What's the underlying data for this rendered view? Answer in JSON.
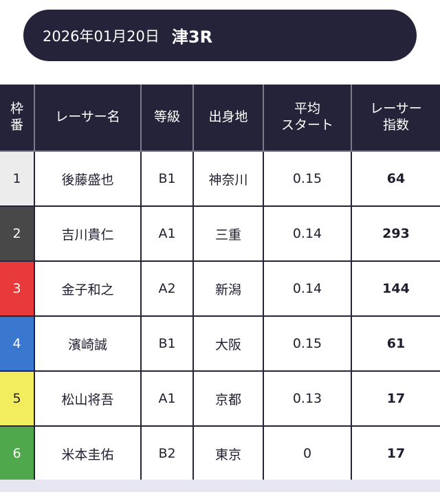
{
  "header": {
    "date": "2026年01月20日",
    "race": "津3R"
  },
  "table": {
    "columns": {
      "frame": [
        "枠",
        "番"
      ],
      "racer_name": "レーサー名",
      "grade": "等級",
      "hometown": "出身地",
      "avg_start": [
        "平均",
        "スタート"
      ],
      "racer_index": [
        "レーサー",
        "指数"
      ]
    },
    "rows": [
      {
        "frame": "1",
        "name": "後藤盛也",
        "grade": "B1",
        "hometown": "神奈川",
        "avg_start": "0.15",
        "index": "64"
      },
      {
        "frame": "2",
        "name": "吉川貴仁",
        "grade": "A1",
        "hometown": "三重",
        "avg_start": "0.14",
        "index": "293"
      },
      {
        "frame": "3",
        "name": "金子和之",
        "grade": "A2",
        "hometown": "新潟",
        "avg_start": "0.14",
        "index": "144"
      },
      {
        "frame": "4",
        "name": "濱崎誠",
        "grade": "B1",
        "hometown": "大阪",
        "avg_start": "0.15",
        "index": "61"
      },
      {
        "frame": "5",
        "name": "松山将吾",
        "grade": "A1",
        "hometown": "京都",
        "avg_start": "0.13",
        "index": "17"
      },
      {
        "frame": "6",
        "name": "米本圭佑",
        "grade": "B2",
        "hometown": "東京",
        "avg_start": "0",
        "index": "17"
      }
    ]
  },
  "colors": {
    "header_bg": "#25233a",
    "frame_1": "#ececec",
    "frame_2": "#484848",
    "frame_3": "#e8393b",
    "frame_4": "#3a78cf",
    "frame_5": "#f2ec5f",
    "frame_6": "#4fa84c"
  }
}
